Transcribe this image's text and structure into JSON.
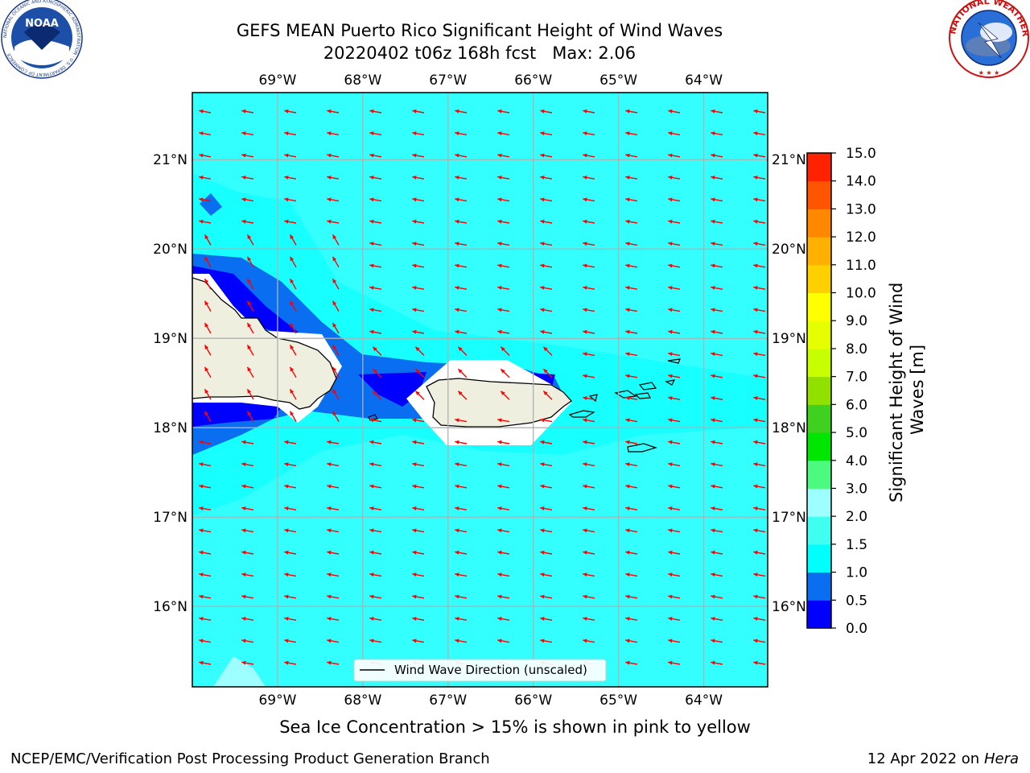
{
  "title": {
    "line1": "GEFS MEAN Puerto Rico Significant Height of Wind Waves",
    "line2": "20220402 t06z 168h fcst   Max: 2.06"
  },
  "note": "Sea Ice Concentration > 15% is shown in pink to yellow",
  "footer": {
    "left": "NCEP/EMC/Verification Post Processing Product Generation Branch",
    "right_date": "12 Apr 2022 on ",
    "right_host": "Hera"
  },
  "logos": {
    "noaa": {
      "text": "NOAA",
      "ring": "NATIONAL OCEANIC AND ATMOSPHERIC ADMINISTRATION · U.S. DEPARTMENT OF COMMERCE"
    },
    "nws": {
      "ring": "NATIONAL WEATHER SERVICE"
    }
  },
  "map": {
    "lon_range": [
      -70,
      -63.25
    ],
    "lat_range": [
      15.1,
      21.75
    ],
    "lon_ticks": [
      {
        "value": -69,
        "label": "69°W"
      },
      {
        "value": -68,
        "label": "68°W"
      },
      {
        "value": -67,
        "label": "67°W"
      },
      {
        "value": -66,
        "label": "66°W"
      },
      {
        "value": -65,
        "label": "65°W"
      },
      {
        "value": -64,
        "label": "64°W"
      }
    ],
    "lat_ticks": [
      {
        "value": 21,
        "label": "21°N"
      },
      {
        "value": 20,
        "label": "20°N"
      },
      {
        "value": 19,
        "label": "19°N"
      },
      {
        "value": 18,
        "label": "18°N"
      },
      {
        "value": 17,
        "label": "17°N"
      },
      {
        "value": 16,
        "label": "16°N"
      }
    ],
    "legend_label": "Wind Wave Direction (unscaled)",
    "arrow_color": "#ff0000",
    "background_fill": "#33ffff"
  },
  "colorbar": {
    "label": "Significant Height of Wind Waves [m]",
    "label_line1": "Significant Height of Wind",
    "label_line2": "Waves [m]",
    "levels": [
      0.0,
      0.5,
      1.0,
      1.5,
      2.0,
      3.0,
      4.0,
      5.0,
      6.0,
      7.0,
      8.0,
      9.0,
      10.0,
      11.0,
      12.0,
      13.0,
      14.0,
      15.0
    ],
    "tick_labels": [
      "0.0",
      "0.5",
      "1.0",
      "1.5",
      "2.0",
      "3.0",
      "4.0",
      "5.0",
      "6.0",
      "7.0",
      "8.0",
      "9.0",
      "10.0",
      "11.0",
      "12.0",
      "13.0",
      "14.0",
      "15.0"
    ],
    "colors": [
      "#0000ff",
      "#0a6ef0",
      "#00ffff",
      "#40fff0",
      "#9dffff",
      "#4dfa80",
      "#00e600",
      "#40d020",
      "#90e000",
      "#c8ff00",
      "#e6ff00",
      "#ffff00",
      "#ffd000",
      "#ffb000",
      "#ff8800",
      "#ff5500",
      "#ff2200"
    ]
  }
}
